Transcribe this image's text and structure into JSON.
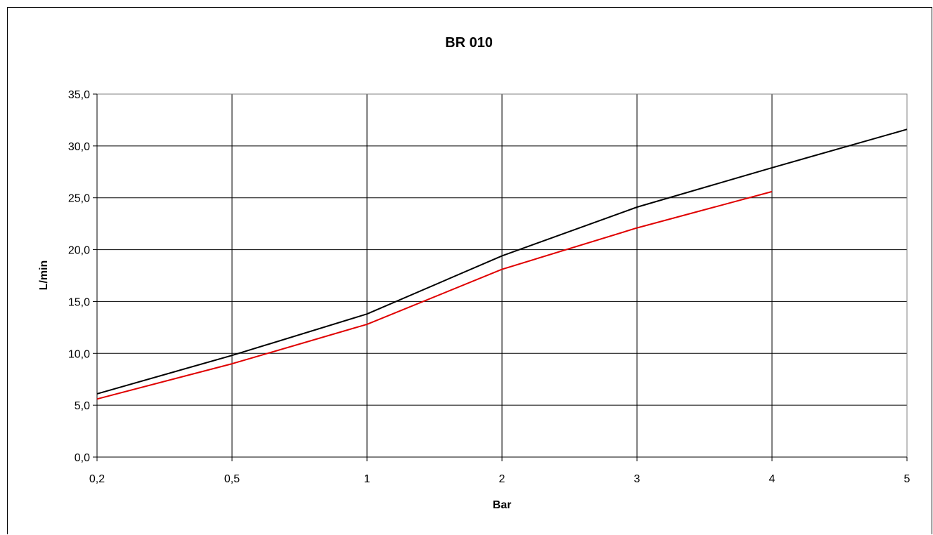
{
  "chart_data": {
    "type": "line",
    "title": "BR 010",
    "xlabel": "Bar",
    "ylabel": "L/min",
    "categories": [
      "0,2",
      "0,5",
      "1",
      "2",
      "3",
      "4",
      "5"
    ],
    "y_tick_labels": [
      "0,0",
      "5,0",
      "10,0",
      "15,0",
      "20,0",
      "25,0",
      "30,0",
      "35,0"
    ],
    "ylim": [
      0,
      35
    ],
    "grid": true,
    "legend": "none",
    "series": [
      {
        "values": [
          6.1,
          9.8,
          13.8,
          19.4,
          24.1,
          27.9,
          31.6
        ],
        "color": "#000000"
      },
      {
        "values": [
          5.6,
          9.0,
          12.8,
          18.1,
          22.1,
          25.6,
          null
        ],
        "color": "#e00000"
      }
    ]
  }
}
